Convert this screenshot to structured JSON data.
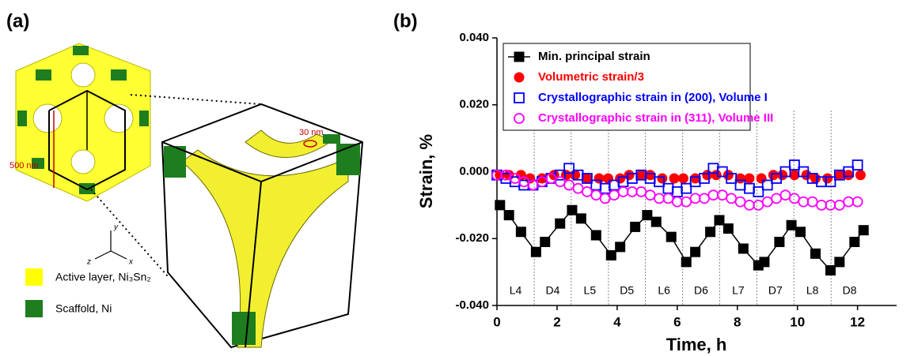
{
  "panel_a": {
    "label": "(a)",
    "scale_long": "500 nm",
    "scale_short": "30 nm",
    "axis_x": "x",
    "axis_y": "y",
    "axis_z": "z",
    "legend": [
      {
        "name": "Active layer, Ni₃Sn₂",
        "color": "#ffff00"
      },
      {
        "name": "Scaffold, Ni",
        "color": "#1e7d1e"
      }
    ]
  },
  "chart_data": {
    "type": "scatter",
    "panel_label": "(b)",
    "x_label": "Time, h",
    "y_label": "Strain, %",
    "xlim": [
      0,
      13.3
    ],
    "ylim": [
      -0.04,
      0.04
    ],
    "xticks": [
      0,
      2,
      4,
      6,
      8,
      10,
      12
    ],
    "yticks": [
      {
        "value": -0.04,
        "label": "-0.040"
      },
      {
        "value": -0.02,
        "label": "-0.020"
      },
      {
        "value": 0,
        "label": "0.000"
      },
      {
        "value": 0.02,
        "label": "0.020"
      },
      {
        "value": 0.04,
        "label": "0.040"
      }
    ],
    "grid": false,
    "legend_position": "upper left",
    "phase_boundaries": [
      1.24,
      2.47,
      3.71,
      4.94,
      6.18,
      7.41,
      8.65,
      9.88,
      11.12
    ],
    "phase_labels": [
      "L4",
      "D4",
      "L5",
      "D5",
      "L6",
      "D6",
      "L7",
      "D7",
      "L8",
      "D8"
    ],
    "series": [
      {
        "name": "Min. principal strain",
        "color": "#000000",
        "marker": "square-filled",
        "line": true,
        "x": [
          0.1,
          0.4,
          0.8,
          1.3,
          1.6,
          2.1,
          2.5,
          2.8,
          3.3,
          3.8,
          4.1,
          4.6,
          5.0,
          5.3,
          5.8,
          6.3,
          6.6,
          7.1,
          7.4,
          7.7,
          8.2,
          8.7,
          8.9,
          9.4,
          9.8,
          10.1,
          10.6,
          11.1,
          11.4,
          11.9,
          12.2
        ],
        "values": [
          -0.01,
          -0.013,
          -0.018,
          -0.024,
          -0.021,
          -0.0155,
          -0.0115,
          -0.014,
          -0.019,
          -0.025,
          -0.0225,
          -0.0165,
          -0.013,
          -0.015,
          -0.0195,
          -0.027,
          -0.024,
          -0.018,
          -0.0145,
          -0.017,
          -0.023,
          -0.028,
          -0.027,
          -0.021,
          -0.016,
          -0.018,
          -0.0245,
          -0.0295,
          -0.027,
          -0.021,
          -0.0175
        ]
      },
      {
        "name": "Volumetric strain/3",
        "color": "#ff0000",
        "marker": "circle-filled",
        "line": false,
        "x": [
          0.1,
          0.4,
          0.8,
          1.1,
          1.5,
          1.9,
          2.3,
          2.6,
          3.0,
          3.4,
          3.7,
          4.1,
          4.4,
          4.8,
          5.1,
          5.5,
          5.9,
          6.2,
          6.6,
          7.0,
          7.3,
          7.7,
          8.1,
          8.4,
          8.8,
          9.2,
          9.5,
          9.9,
          10.3,
          10.6,
          11.0,
          11.4,
          11.7,
          12.1
        ],
        "values": [
          -0.001,
          -0.001,
          -0.001,
          -0.002,
          -0.002,
          -0.001,
          -0.001,
          -0.001,
          -0.002,
          -0.002,
          -0.002,
          -0.002,
          -0.001,
          -0.001,
          -0.001,
          -0.002,
          -0.002,
          -0.002,
          -0.002,
          -0.001,
          -0.001,
          -0.001,
          -0.002,
          -0.002,
          -0.002,
          -0.001,
          -0.001,
          -0.001,
          -0.001,
          -0.002,
          -0.002,
          -0.001,
          -0.001,
          -0.001
        ]
      },
      {
        "name": "Crystallographic strain in (200), Volume I",
        "color": "#0000ff",
        "marker": "square-open",
        "line": false,
        "x": [
          0,
          0.3,
          0.6,
          0.9,
          1.2,
          1.5,
          1.8,
          2.1,
          2.4,
          2.7,
          3.0,
          3.3,
          3.6,
          3.9,
          4.2,
          4.5,
          4.8,
          5.1,
          5.4,
          5.7,
          6.0,
          6.3,
          6.6,
          6.9,
          7.2,
          7.5,
          7.8,
          8.1,
          8.4,
          8.7,
          9.0,
          9.3,
          9.6,
          9.9,
          10.2,
          10.5,
          10.8,
          11.1,
          11.4,
          11.7,
          12.0
        ],
        "values": [
          -0.001,
          -0.002,
          -0.003,
          -0.004,
          -0.004,
          -0.003,
          -0.002,
          -0.001,
          0.001,
          -0.001,
          -0.002,
          -0.004,
          -0.005,
          -0.004,
          -0.003,
          -0.002,
          -0.001,
          -0.002,
          -0.003,
          -0.005,
          -0.006,
          -0.005,
          -0.003,
          -0.002,
          0.001,
          0.0,
          -0.002,
          -0.004,
          -0.005,
          -0.006,
          -0.004,
          -0.002,
          0.0,
          0.002,
          0.0,
          -0.002,
          -0.003,
          -0.003,
          -0.001,
          0.0,
          0.002
        ]
      },
      {
        "name": "Crystallographic strain in (311), Volume III",
        "color": "#ff00ff",
        "marker": "circle-open",
        "line": false,
        "x": [
          0,
          0.3,
          0.6,
          0.9,
          1.2,
          1.5,
          1.8,
          2.1,
          2.4,
          2.7,
          3.0,
          3.3,
          3.6,
          3.9,
          4.2,
          4.5,
          4.8,
          5.1,
          5.4,
          5.7,
          6.0,
          6.3,
          6.6,
          6.9,
          7.2,
          7.5,
          7.8,
          8.1,
          8.4,
          8.7,
          9.0,
          9.3,
          9.6,
          9.9,
          10.2,
          10.5,
          10.8,
          11.1,
          11.4,
          11.7,
          12.0
        ],
        "values": [
          -0.001,
          -0.001,
          -0.002,
          -0.003,
          -0.004,
          -0.003,
          -0.002,
          -0.003,
          -0.004,
          -0.005,
          -0.006,
          -0.007,
          -0.008,
          -0.007,
          -0.006,
          -0.006,
          -0.006,
          -0.007,
          -0.008,
          -0.008,
          -0.009,
          -0.009,
          -0.008,
          -0.008,
          -0.007,
          -0.007,
          -0.008,
          -0.009,
          -0.01,
          -0.01,
          -0.009,
          -0.008,
          -0.007,
          -0.008,
          -0.009,
          -0.009,
          -0.01,
          -0.01,
          -0.01,
          -0.009,
          -0.009
        ]
      }
    ]
  }
}
